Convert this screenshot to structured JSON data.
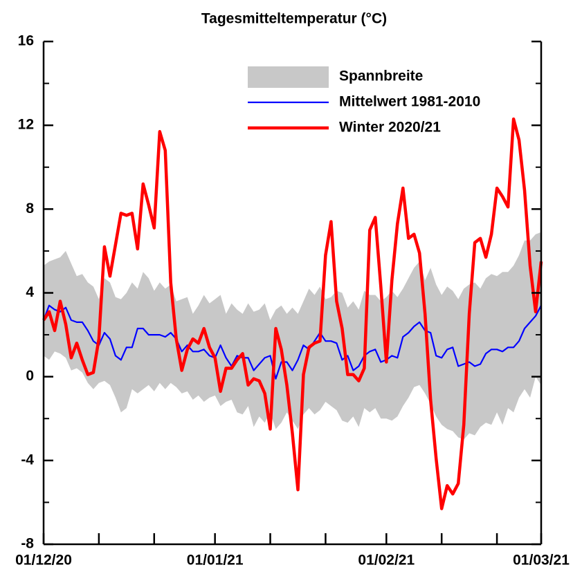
{
  "chart_data": {
    "type": "line",
    "title": "Tagesmitteltemperatur (°C)",
    "x": [
      "01/12/20",
      "02/12/20",
      "03/12/20",
      "04/12/20",
      "05/12/20",
      "06/12/20",
      "07/12/20",
      "08/12/20",
      "09/12/20",
      "10/12/20",
      "11/12/20",
      "12/12/20",
      "13/12/20",
      "14/12/20",
      "15/12/20",
      "16/12/20",
      "17/12/20",
      "18/12/20",
      "19/12/20",
      "20/12/20",
      "21/12/20",
      "22/12/20",
      "23/12/20",
      "24/12/20",
      "25/12/20",
      "26/12/20",
      "27/12/20",
      "28/12/20",
      "29/12/20",
      "30/12/20",
      "31/12/20",
      "01/01/21",
      "02/01/21",
      "03/01/21",
      "04/01/21",
      "05/01/21",
      "06/01/21",
      "07/01/21",
      "08/01/21",
      "09/01/21",
      "10/01/21",
      "11/01/21",
      "12/01/21",
      "13/01/21",
      "14/01/21",
      "15/01/21",
      "16/01/21",
      "17/01/21",
      "18/01/21",
      "19/01/21",
      "20/01/21",
      "21/01/21",
      "22/01/21",
      "23/01/21",
      "24/01/21",
      "25/01/21",
      "26/01/21",
      "27/01/21",
      "28/01/21",
      "29/01/21",
      "30/01/21",
      "31/01/21",
      "01/02/21",
      "02/02/21",
      "03/02/21",
      "04/02/21",
      "05/02/21",
      "06/02/21",
      "07/02/21",
      "08/02/21",
      "09/02/21",
      "10/02/21",
      "11/02/21",
      "12/02/21",
      "13/02/21",
      "14/02/21",
      "15/02/21",
      "16/02/21",
      "17/02/21",
      "18/02/21",
      "19/02/21",
      "20/02/21",
      "21/02/21",
      "22/02/21",
      "23/02/21",
      "24/02/21",
      "25/02/21",
      "26/02/21",
      "27/02/21",
      "28/02/21",
      "01/03/21"
    ],
    "series": [
      {
        "name": "Spannbreite",
        "color": "#c8c8c8",
        "type": "band",
        "high": [
          5.3,
          5.5,
          5.6,
          5.7,
          6.0,
          5.4,
          4.8,
          4.9,
          4.5,
          4.3,
          3.7,
          4.7,
          4.5,
          3.8,
          3.7,
          4.0,
          4.5,
          4.2,
          5.0,
          4.7,
          4.1,
          4.5,
          4.2,
          4.4,
          3.6,
          3.7,
          3.8,
          3.0,
          3.4,
          3.9,
          3.5,
          3.7,
          3.9,
          3.0,
          3.5,
          3.2,
          3.0,
          3.5,
          3.1,
          3.2,
          3.5,
          2.7,
          3.2,
          3.4,
          3.0,
          3.3,
          3.0,
          3.6,
          4.2,
          3.9,
          4.3,
          3.7,
          3.8,
          4.1,
          4.0,
          3.3,
          3.6,
          3.2,
          4.1,
          3.9,
          3.9,
          3.6,
          3.8,
          4.1,
          3.8,
          4.2,
          4.7,
          5.2,
          5.5,
          4.6,
          5.2,
          4.4,
          3.9,
          4.3,
          4.1,
          3.7,
          4.2,
          4.4,
          4.5,
          4.2,
          4.7,
          4.9,
          4.8,
          5.0,
          5.0,
          5.3,
          5.8,
          6.5,
          6.5,
          6.8,
          6.9
        ],
        "low": [
          1.0,
          0.8,
          1.2,
          1.1,
          0.9,
          0.3,
          0.4,
          0.2,
          -0.3,
          -0.6,
          -0.3,
          -0.2,
          -0.4,
          -1.0,
          -1.7,
          -1.5,
          -0.6,
          -0.8,
          -0.6,
          -0.4,
          -0.7,
          -0.3,
          -0.6,
          -0.3,
          -0.5,
          -0.8,
          -0.7,
          -1.1,
          -0.9,
          -1.2,
          -1.0,
          -0.9,
          -1.4,
          -1.2,
          -1.1,
          -1.7,
          -1.8,
          -1.4,
          -2.4,
          -1.9,
          -2.2,
          -1.7,
          -2.5,
          -2.2,
          -1.7,
          -2.1,
          -2.5,
          -1.8,
          -1.5,
          -1.8,
          -1.6,
          -1.2,
          -1.4,
          -1.6,
          -2.1,
          -2.2,
          -1.9,
          -2.4,
          -1.5,
          -1.7,
          -1.5,
          -2.0,
          -2.0,
          -2.1,
          -1.9,
          -1.4,
          -1.0,
          -0.5,
          -0.4,
          -0.8,
          -1.3,
          -1.9,
          -2.3,
          -2.5,
          -2.6,
          -2.9,
          -3.0,
          -2.7,
          -2.8,
          -2.4,
          -2.2,
          -2.3,
          -1.7,
          -2.3,
          -1.5,
          -1.7,
          -1.0,
          -0.6,
          -1.0,
          0.0,
          -0.4
        ]
      },
      {
        "name": "Mittelwert 1981-2010",
        "color": "#0000ff",
        "values": [
          2.7,
          3.4,
          3.2,
          3.1,
          3.3,
          2.7,
          2.6,
          2.6,
          2.2,
          1.7,
          1.5,
          2.1,
          1.8,
          1.0,
          0.8,
          1.4,
          1.4,
          2.3,
          2.3,
          2.0,
          2.0,
          2.0,
          1.9,
          2.1,
          1.8,
          1.2,
          1.5,
          1.2,
          1.2,
          1.3,
          1.0,
          0.9,
          1.5,
          0.9,
          0.5,
          1.0,
          0.9,
          0.9,
          0.3,
          0.6,
          0.9,
          1.0,
          -0.1,
          0.7,
          0.7,
          0.3,
          0.8,
          1.5,
          1.3,
          1.7,
          2.1,
          1.7,
          1.7,
          1.6,
          0.8,
          1.0,
          0.3,
          0.5,
          1.0,
          1.2,
          1.3,
          0.7,
          0.8,
          1.0,
          0.9,
          1.9,
          2.1,
          2.4,
          2.6,
          2.2,
          2.1,
          1.0,
          0.9,
          1.3,
          1.4,
          0.5,
          0.6,
          0.7,
          0.5,
          0.6,
          1.1,
          1.3,
          1.3,
          1.2,
          1.4,
          1.4,
          1.7,
          2.3,
          2.6,
          2.9,
          3.4
        ]
      },
      {
        "name": "Winter 2020/21",
        "color": "#ff0000",
        "values": [
          2.7,
          3.1,
          2.2,
          3.6,
          2.5,
          0.9,
          1.6,
          0.8,
          0.1,
          0.2,
          1.8,
          6.2,
          4.8,
          6.3,
          7.8,
          7.7,
          7.8,
          6.1,
          9.2,
          8.2,
          7.1,
          11.7,
          10.8,
          4.5,
          1.8,
          0.3,
          1.3,
          1.8,
          1.6,
          2.3,
          1.4,
          0.9,
          -0.7,
          0.4,
          0.4,
          0.8,
          1.1,
          -0.4,
          -0.1,
          -0.2,
          -0.8,
          -2.5,
          2.3,
          1.3,
          -0.4,
          -2.7,
          -5.4,
          0.1,
          1.4,
          1.6,
          1.7,
          5.8,
          7.4,
          3.6,
          2.3,
          0.1,
          0.1,
          -0.2,
          0.4,
          7.0,
          7.6,
          4.3,
          0.7,
          4.6,
          7.3,
          9.0,
          6.6,
          6.8,
          5.9,
          3.0,
          -1.1,
          -3.9,
          -6.3,
          -5.2,
          -5.6,
          -5.1,
          -2.3,
          3.0,
          6.4,
          6.6,
          5.7,
          6.8,
          9.0,
          8.6,
          8.1,
          12.3,
          11.3,
          8.9,
          5.3,
          3.1,
          5.5
        ]
      }
    ],
    "xlim": [
      "01/12/20",
      "01/03/21"
    ],
    "xticks": [
      "01/12/20",
      "01/01/21",
      "01/02/21",
      "01/03/21"
    ],
    "xminor_ticks": [
      "11/12/20",
      "21/12/20",
      "11/01/21",
      "21/01/21",
      "11/02/21",
      "21/02/21"
    ],
    "ylim": [
      -8,
      16
    ],
    "yticks": [
      -8,
      -4,
      0,
      4,
      8,
      12,
      16
    ],
    "yminor_ticks": [
      -6,
      -2,
      2,
      6,
      10,
      14
    ],
    "grid": false,
    "legend": "top-right"
  }
}
